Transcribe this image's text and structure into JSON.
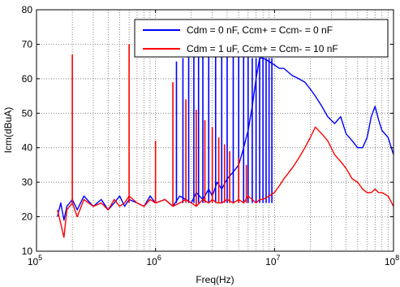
{
  "chart_data": {
    "type": "line",
    "xlabel": "Freq(Hz)",
    "ylabel": "Icm(dBuA)",
    "x_scale": "log",
    "xlim": [
      100000,
      100000000
    ],
    "ylim": [
      10,
      80
    ],
    "grid": true,
    "legend_position": "top-right",
    "x_ticks": [
      {
        "base": "10",
        "exp": "5",
        "value": 100000
      },
      {
        "base": "10",
        "exp": "6",
        "value": 1000000
      },
      {
        "base": "10",
        "exp": "7",
        "value": 10000000
      },
      {
        "base": "10",
        "exp": "8",
        "value": 100000000
      }
    ],
    "y_ticks": [
      10,
      20,
      30,
      40,
      50,
      60,
      70,
      80
    ],
    "series": [
      {
        "name": "Cdm = 0 nF, Ccm+ = Ccm- = 0 nF",
        "color": "#0000ff",
        "x": [
          150000,
          160000,
          170000,
          180000,
          200000,
          220000,
          250000,
          300000,
          350000,
          400000,
          450000,
          500000,
          550000,
          600000,
          700000,
          800000,
          900000,
          1000000,
          1200000,
          1400000,
          1600000,
          1800000,
          2000000,
          2200000,
          2500000,
          2800000,
          3000000,
          3300000,
          3600000,
          4000000,
          4500000,
          5000000,
          5500000,
          6000000,
          6500000,
          7000000,
          7500000,
          8000000,
          9000000,
          10000000,
          11000000,
          12000000,
          14000000,
          16000000,
          18000000,
          20000000,
          22000000,
          25000000,
          28000000,
          32000000,
          36000000,
          40000000,
          45000000,
          50000000,
          55000000,
          60000000,
          65000000,
          70000000,
          75000000,
          80000000,
          90000000,
          100000000
        ],
        "y": [
          20,
          24,
          19,
          23,
          25,
          22,
          26,
          23,
          25,
          22,
          24,
          26,
          23,
          25,
          24,
          23,
          26,
          24,
          25,
          23,
          26,
          25,
          24,
          27,
          25,
          28,
          26,
          30,
          28,
          31,
          33,
          35,
          40,
          45,
          52,
          60,
          66,
          66,
          65,
          64,
          63,
          63,
          61,
          60,
          59,
          57,
          55,
          52,
          49,
          47,
          49,
          44,
          42,
          40,
          40,
          43,
          49,
          52,
          48,
          45,
          43,
          38
        ]
      },
      {
        "name": "Cdm = 1 uF, Ccm+ = Ccm- = 10 nF",
        "color": "#ff0000",
        "x": [
          150000,
          160000,
          170000,
          180000,
          200000,
          220000,
          250000,
          300000,
          350000,
          400000,
          450000,
          500000,
          550000,
          600000,
          700000,
          800000,
          900000,
          1000000,
          1200000,
          1400000,
          1600000,
          1800000,
          2000000,
          2200000,
          2500000,
          2800000,
          3000000,
          3300000,
          3600000,
          4000000,
          4500000,
          5000000,
          5500000,
          6000000,
          6500000,
          7000000,
          7500000,
          8000000,
          9000000,
          10000000,
          11000000,
          12000000,
          14000000,
          16000000,
          18000000,
          20000000,
          22000000,
          25000000,
          28000000,
          32000000,
          36000000,
          40000000,
          45000000,
          50000000,
          55000000,
          60000000,
          65000000,
          70000000,
          75000000,
          80000000,
          90000000,
          100000000
        ],
        "y": [
          22,
          18,
          14,
          22,
          24,
          20,
          25,
          23,
          24,
          22,
          25,
          23,
          24,
          26,
          24,
          23,
          25,
          24,
          25,
          23,
          24,
          25,
          24,
          23,
          25,
          24,
          25,
          24,
          24,
          25,
          24,
          25,
          24,
          26,
          25,
          24,
          25,
          25,
          26,
          27,
          29,
          31,
          34,
          37,
          40,
          43,
          46,
          44,
          42,
          38,
          36,
          34,
          31,
          30,
          28,
          27,
          27,
          28,
          27,
          27,
          26,
          23
        ]
      }
    ],
    "spikes": [
      {
        "series": 1,
        "x": 200000,
        "y": 67
      },
      {
        "series": 1,
        "x": 600000,
        "y": 70
      },
      {
        "series": 1,
        "x": 1000000,
        "y": 42
      },
      {
        "series": 1,
        "x": 1400000,
        "y": 59
      },
      {
        "series": 1,
        "x": 1800000,
        "y": 54
      },
      {
        "series": 1,
        "x": 2200000,
        "y": 51
      },
      {
        "series": 1,
        "x": 2600000,
        "y": 48
      },
      {
        "series": 1,
        "x": 3000000,
        "y": 46
      },
      {
        "series": 1,
        "x": 3400000,
        "y": 43
      },
      {
        "series": 1,
        "x": 3800000,
        "y": 41
      },
      {
        "series": 1,
        "x": 4200000,
        "y": 39
      },
      {
        "series": 1,
        "x": 5000000,
        "y": 37
      },
      {
        "series": 1,
        "x": 5800000,
        "y": 35
      },
      {
        "series": 0,
        "x": 1500000,
        "y": 65
      },
      {
        "series": 0,
        "x": 1700000,
        "y": 66
      },
      {
        "series": 0,
        "x": 1900000,
        "y": 67
      },
      {
        "series": 0,
        "x": 2100000,
        "y": 67
      },
      {
        "series": 0,
        "x": 2300000,
        "y": 68
      },
      {
        "series": 0,
        "x": 2500000,
        "y": 67
      },
      {
        "series": 0,
        "x": 2800000,
        "y": 67
      },
      {
        "series": 0,
        "x": 3200000,
        "y": 67
      },
      {
        "series": 0,
        "x": 3600000,
        "y": 67
      },
      {
        "series": 0,
        "x": 4000000,
        "y": 67
      },
      {
        "series": 0,
        "x": 4500000,
        "y": 67
      },
      {
        "series": 0,
        "x": 5000000,
        "y": 67
      },
      {
        "series": 0,
        "x": 5500000,
        "y": 67
      },
      {
        "series": 0,
        "x": 6000000,
        "y": 67
      },
      {
        "series": 0,
        "x": 6500000,
        "y": 66
      },
      {
        "series": 0,
        "x": 7000000,
        "y": 66
      },
      {
        "series": 0,
        "x": 7500000,
        "y": 66
      },
      {
        "series": 0,
        "x": 8000000,
        "y": 66
      },
      {
        "series": 0,
        "x": 8500000,
        "y": 66
      },
      {
        "series": 0,
        "x": 9000000,
        "y": 66
      },
      {
        "series": 0,
        "x": 9500000,
        "y": 66
      }
    ]
  }
}
